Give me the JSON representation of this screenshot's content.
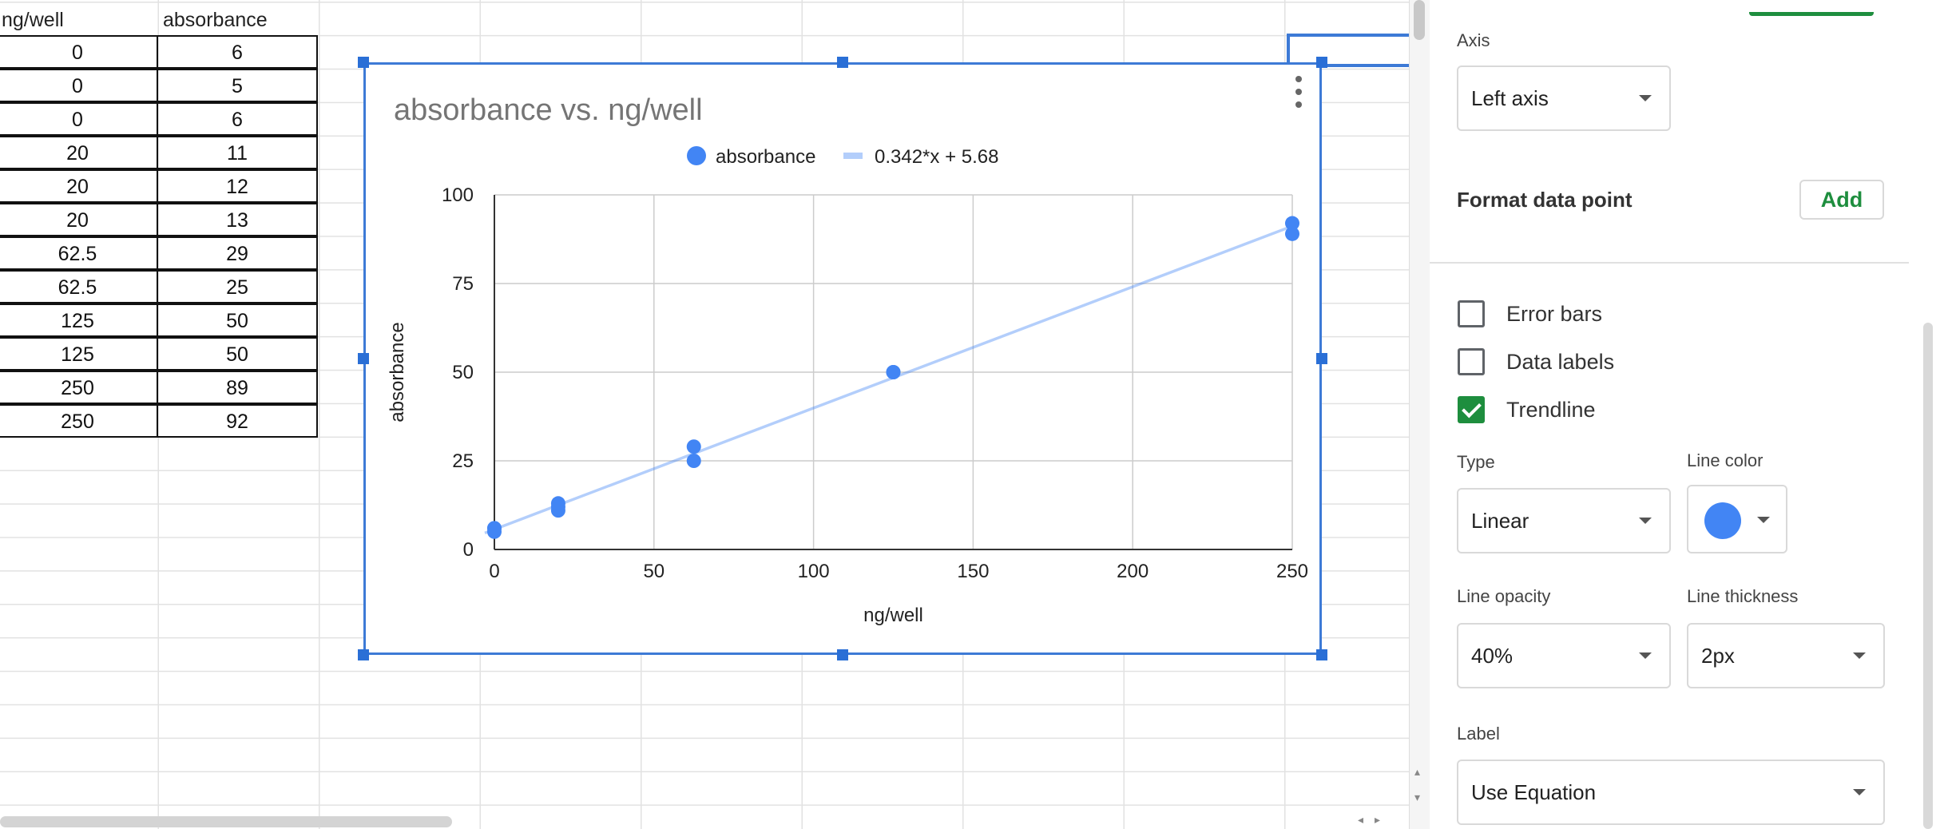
{
  "sheet": {
    "headers": [
      "ng/well",
      "absorbance"
    ],
    "rows": [
      [
        "0",
        "6"
      ],
      [
        "0",
        "5"
      ],
      [
        "0",
        "6"
      ],
      [
        "20",
        "11"
      ],
      [
        "20",
        "12"
      ],
      [
        "20",
        "13"
      ],
      [
        "62.5",
        "29"
      ],
      [
        "62.5",
        "25"
      ],
      [
        "125",
        "50"
      ],
      [
        "125",
        "50"
      ],
      [
        "250",
        "89"
      ],
      [
        "250",
        "92"
      ]
    ]
  },
  "chart_data": {
    "type": "scatter",
    "title": "absorbance vs. ng/well",
    "xlabel": "ng/well",
    "ylabel": "absorbance",
    "xlim": [
      0,
      250
    ],
    "ylim": [
      0,
      100
    ],
    "x_ticks": [
      "0",
      "50",
      "100",
      "150",
      "200",
      "250"
    ],
    "y_ticks": [
      "0",
      "25",
      "50",
      "75",
      "100"
    ],
    "grid": true,
    "legend_position": "top",
    "series": [
      {
        "name": "absorbance",
        "color": "#4285f4",
        "x": [
          0,
          0,
          0,
          20,
          20,
          20,
          62.5,
          62.5,
          125,
          125,
          250,
          250
        ],
        "y": [
          6,
          5,
          6,
          11,
          12,
          13,
          29,
          25,
          50,
          50,
          89,
          92
        ]
      }
    ],
    "trendline": {
      "label": "0.342*x + 5.68",
      "slope": 0.342,
      "intercept": 5.68,
      "color": "#4285f4",
      "opacity": 0.4,
      "x_range": [
        -3,
        250
      ]
    }
  },
  "panel": {
    "axis_label": "Axis",
    "axis_value": "Left axis",
    "format_data_point": "Format data point",
    "add_label": "Add",
    "error_bars": "Error bars",
    "data_labels": "Data labels",
    "trendline": "Trendline",
    "error_bars_checked": false,
    "data_labels_checked": false,
    "trendline_checked": true,
    "type_label": "Type",
    "type_value": "Linear",
    "line_color_label": "Line color",
    "line_color": "#4285f4",
    "line_opacity_label": "Line opacity",
    "line_opacity_value": "40%",
    "line_thickness_label": "Line thickness",
    "line_thickness_value": "2px",
    "label_label": "Label",
    "label_value": "Use Equation"
  }
}
